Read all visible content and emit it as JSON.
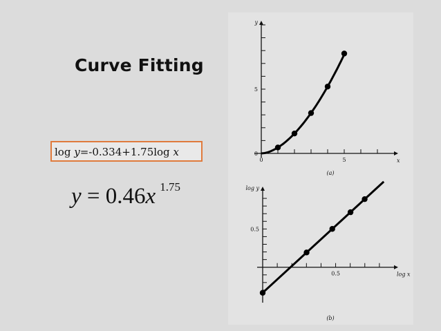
{
  "slide": {
    "title": "Curve Fitting",
    "log_equation": {
      "prefix": "log ",
      "y": "y",
      "middle": "=-0.334+1.75log ",
      "x": "x"
    },
    "power_equation": {
      "lhs": "y",
      "equals": " = 0.46",
      "x": "x",
      "exponent": "1.75"
    }
  },
  "colors": {
    "equation_box_border": "#e07a3c",
    "background": "#dcdcdc"
  },
  "chart_data": [
    {
      "type": "line",
      "caption": "(a)",
      "xlabel": "x",
      "ylabel": "y",
      "xlim": [
        0,
        8
      ],
      "ylim": [
        0,
        10
      ],
      "x_ticks_labeled": [
        "0",
        "5"
      ],
      "y_ticks_labeled": [
        "0",
        "5"
      ],
      "series": [
        {
          "points": [
            [
              1,
              0.46
            ],
            [
              2,
              1.55
            ],
            [
              3,
              3.14
            ],
            [
              4,
              5.2
            ],
            [
              5,
              7.77
            ]
          ]
        }
      ],
      "grid": false
    },
    {
      "type": "line",
      "caption": "(b)",
      "xlabel": "log x",
      "ylabel": "log y",
      "xlim": [
        0,
        0.9
      ],
      "ylim": [
        -0.4,
        1.0
      ],
      "x_ticks_labeled": [
        "0.5"
      ],
      "y_ticks_labeled": [
        "0.5"
      ],
      "series": [
        {
          "points": [
            [
              0,
              -0.334
            ],
            [
              0.301,
              0.193
            ],
            [
              0.477,
              0.501
            ],
            [
              0.602,
              0.719
            ],
            [
              0.699,
              0.89
            ]
          ]
        }
      ],
      "grid": false
    }
  ]
}
